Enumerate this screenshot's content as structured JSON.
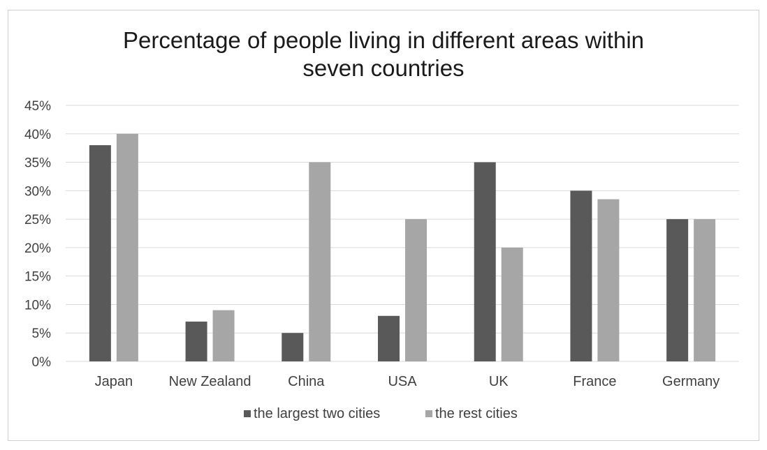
{
  "chart_data": {
    "type": "bar",
    "title_lines": [
      "Percentage of people living in different areas within",
      "seven countries"
    ],
    "categories": [
      "Japan",
      "New Zealand",
      "China",
      "USA",
      "UK",
      "France",
      "Germany"
    ],
    "series": [
      {
        "name": "the largest two cities",
        "values": [
          38,
          7,
          5,
          8,
          35,
          30,
          25
        ],
        "color": "#595959"
      },
      {
        "name": "the rest cities",
        "values": [
          40,
          9,
          35,
          25,
          20,
          28.5,
          25
        ],
        "color": "#a6a6a6"
      }
    ],
    "y_ticks": [
      "0%",
      "5%",
      "10%",
      "15%",
      "20%",
      "25%",
      "30%",
      "35%",
      "40%",
      "45%"
    ],
    "ylim": [
      0,
      45
    ],
    "grid": true,
    "legend_position": "bottom"
  }
}
